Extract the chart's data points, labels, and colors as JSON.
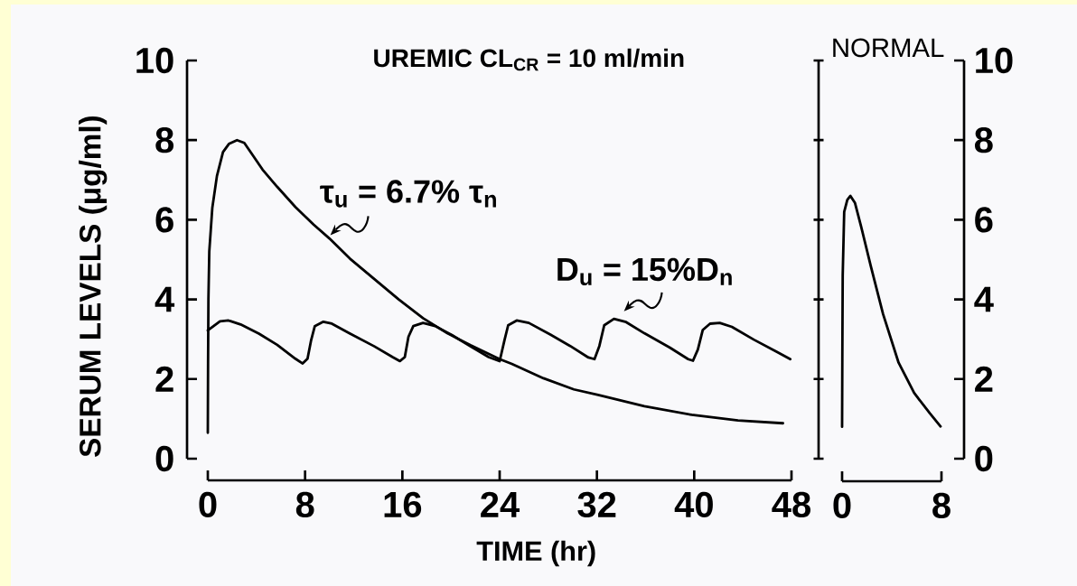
{
  "chart_data": [
    {
      "type": "line",
      "title": "UREMIC CL$_{CR}$ = 10 ml/min",
      "xlabel": "TIME (hr)",
      "ylabel": "SERUM LEVELS (μg/ml)",
      "xlim": [
        0,
        48
      ],
      "xticks": [
        0,
        8,
        16,
        24,
        32,
        40,
        48
      ],
      "ylim": [
        0,
        10
      ],
      "yticks": [
        0,
        2,
        4,
        6,
        8,
        10
      ],
      "series": [
        {
          "color": "#000000",
          "x": [
            0,
            0.02,
            0.05,
            0.12,
            0.37,
            0.75,
            1.25,
            1.75,
            2.4,
            3,
            3.7,
            4.5,
            5.7,
            7.2,
            8.7,
            10,
            11.7,
            13.7,
            15.7,
            17.7,
            19.7,
            21.6,
            24,
            25,
            27.6,
            30.1,
            32.1,
            35.9,
            39.8,
            43.6,
            47.3
          ],
          "values": [
            0.65,
            2.4,
            4,
            5.2,
            6.3,
            7.1,
            7.7,
            7.91,
            8,
            7.93,
            7.62,
            7.26,
            6.83,
            6.32,
            5.88,
            5.53,
            5.02,
            4.51,
            4,
            3.53,
            3.15,
            2.85,
            2.5,
            2.38,
            2.02,
            1.74,
            1.6,
            1.32,
            1.1,
            0.96,
            0.89
          ]
        },
        {
          "color": "#000000",
          "x": [
            0,
            1,
            1.7,
            2.7,
            4.2,
            5.7,
            7.2,
            7.8,
            8.2,
            8.5,
            8.8,
            9.5,
            10.2,
            11.7,
            13.7,
            15.2,
            15.8,
            16.2,
            16.5,
            16.9,
            17.7,
            18.7,
            20.1,
            21.6,
            23.1,
            24,
            24.4,
            24.7,
            25.4,
            26.4,
            28.2,
            29.8,
            31.3,
            31.8,
            32.2,
            32.6,
            33.4,
            34.4,
            35.9,
            38,
            39.5,
            39.9,
            40.3,
            40.7,
            41.3,
            42.1,
            43.1,
            44.9,
            46.7,
            47.9
          ],
          "values": [
            3.22,
            3.45,
            3.47,
            3.37,
            3.14,
            2.86,
            2.51,
            2.39,
            2.51,
            2.98,
            3.33,
            3.44,
            3.39,
            3.14,
            2.82,
            2.55,
            2.45,
            2.55,
            3.06,
            3.33,
            3.41,
            3.33,
            3.1,
            2.82,
            2.55,
            2.45,
            2.98,
            3.35,
            3.47,
            3.41,
            3.11,
            2.83,
            2.54,
            2.5,
            2.83,
            3.35,
            3.51,
            3.43,
            3.15,
            2.79,
            2.5,
            2.46,
            2.74,
            3.23,
            3.39,
            3.41,
            3.31,
            2.99,
            2.7,
            2.5
          ]
        }
      ],
      "annotations": [
        {
          "text": "τ$_{u}$ = 6.7% τ$_{n}$",
          "x": 10,
          "y": 5.5
        },
        {
          "text": "D$_{u}$ = 15%D$_{n}$",
          "x": 34,
          "y": 3.45
        }
      ]
    },
    {
      "type": "line",
      "title": "NORMAL",
      "xlim": [
        0,
        8
      ],
      "xticks": [
        0,
        8
      ],
      "ylim": [
        0,
        10
      ],
      "yticks": [
        0,
        2,
        4,
        6,
        8,
        10
      ],
      "series": [
        {
          "color": "#000000",
          "x": [
            0,
            0.02,
            0.05,
            0.17,
            0.42,
            0.67,
            1.04,
            1.54,
            2.3,
            3.3,
            4.55,
            5.8,
            7.06,
            7.93
          ],
          "values": [
            0.8,
            2.5,
            4.6,
            6.2,
            6.5,
            6.6,
            6.42,
            5.82,
            4.85,
            3.63,
            2.41,
            1.65,
            1.14,
            0.81
          ]
        }
      ]
    }
  ]
}
